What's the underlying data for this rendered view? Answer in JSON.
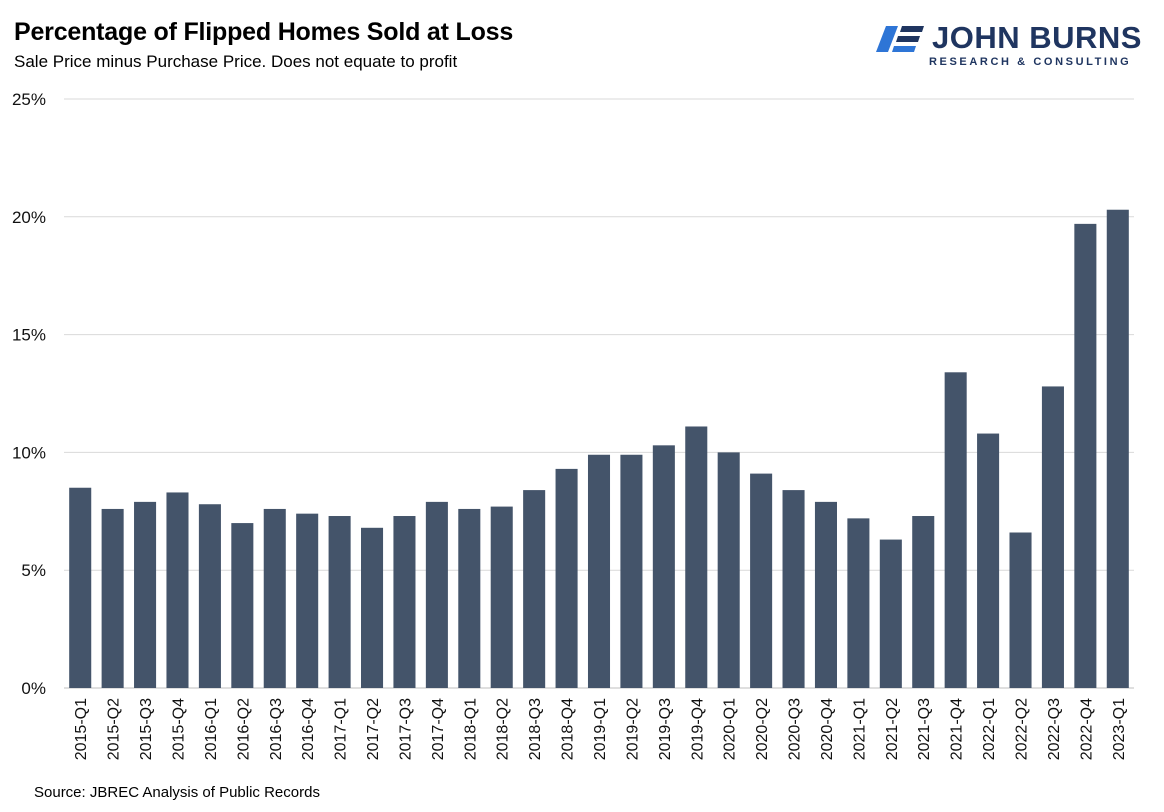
{
  "title": "Percentage of Flipped Homes Sold at Loss",
  "subtitle": "Sale Price minus Purchase Price. Does not equate to profit",
  "source": "Source: JBREC Analysis of Public Records",
  "logo": {
    "name": "JOHN BURNS",
    "tagline": "RESEARCH & CONSULTING"
  },
  "colors": {
    "bar": "#44546a",
    "grid": "#d9d9d9",
    "brand": "#1f3560",
    "brand_accent": "#2e75d6"
  },
  "chart_data": {
    "type": "bar",
    "title": "Percentage of Flipped Homes Sold at Loss",
    "subtitle": "Sale Price minus Purchase Price. Does not equate to profit",
    "xlabel": "",
    "ylabel": "",
    "ylim": [
      0,
      25
    ],
    "y_ticks": [
      0,
      5,
      10,
      15,
      20,
      25
    ],
    "y_tick_labels": [
      "0%",
      "5%",
      "10%",
      "15%",
      "20%",
      "25%"
    ],
    "grid": true,
    "legend": "none",
    "categories": [
      "2015-Q1",
      "2015-Q2",
      "2015-Q3",
      "2015-Q4",
      "2016-Q1",
      "2016-Q2",
      "2016-Q3",
      "2016-Q4",
      "2017-Q1",
      "2017-Q2",
      "2017-Q3",
      "2017-Q4",
      "2018-Q1",
      "2018-Q2",
      "2018-Q3",
      "2018-Q4",
      "2019-Q1",
      "2019-Q2",
      "2019-Q3",
      "2019-Q4",
      "2020-Q1",
      "2020-Q2",
      "2020-Q3",
      "2020-Q4",
      "2021-Q1",
      "2021-Q2",
      "2021-Q3",
      "2021-Q4",
      "2022-Q1",
      "2022-Q2",
      "2022-Q3",
      "2022-Q4",
      "2023-Q1"
    ],
    "values": [
      8.5,
      7.6,
      7.9,
      8.3,
      7.8,
      7.0,
      7.6,
      7.4,
      7.3,
      6.8,
      7.3,
      7.9,
      7.6,
      7.7,
      8.4,
      9.3,
      9.9,
      9.9,
      10.3,
      11.1,
      10.0,
      9.1,
      8.4,
      7.9,
      7.2,
      6.3,
      7.3,
      13.4,
      10.8,
      6.6,
      12.8,
      19.7,
      20.3
    ]
  }
}
